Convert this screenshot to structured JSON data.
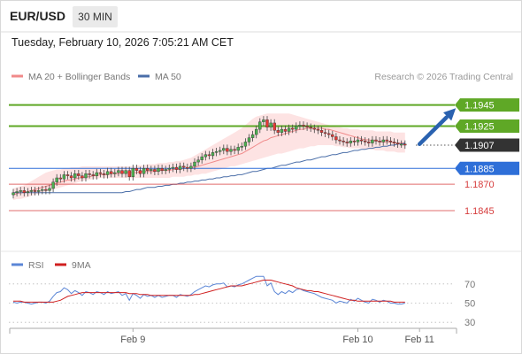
{
  "header": {
    "symbol": "EUR/USD",
    "timeframe": "30 MIN",
    "datetime": "Tuesday, February 10, 2026 7:05:21 AM CET"
  },
  "colors": {
    "resistance": "#5fa826",
    "current": "#333333",
    "pivot": "#2e6fd8",
    "support": "#d63c3c",
    "bollinger_fill": "#fde3e3",
    "ma20": "#f08a8a",
    "ma50": "#4a6ea8",
    "rsi": "#5b86d6",
    "rsi_ma": "#d02020",
    "arrow": "#2a62b0",
    "candle_up": "#4caf50",
    "candle_down": "#e53935"
  },
  "chart_data": [
    {
      "type": "candlestick",
      "legend": [
        {
          "name": "MA 20 + Bollinger Bands",
          "color": "#f08a8a"
        },
        {
          "name": "MA 50",
          "color": "#4a6ea8"
        }
      ],
      "legend_placement": "top-left",
      "source_label": "Research © 2026 Trading Central",
      "ylim": [
        1.1814,
        1.1969
      ],
      "x_tick_labels": [
        {
          "label": "Feb 9",
          "index": 33
        },
        {
          "label": "Feb 10",
          "index": 95
        },
        {
          "label": "Feb 11",
          "index": 112
        }
      ],
      "levels": [
        {
          "value": 1.1945,
          "label": "1.1945",
          "kind": "resistance",
          "style": "box"
        },
        {
          "value": 1.1925,
          "label": "1.1925",
          "kind": "resistance",
          "style": "box"
        },
        {
          "value": 1.1907,
          "label": "1.1907",
          "kind": "current",
          "style": "box"
        },
        {
          "value": 1.1885,
          "label": "1.1885",
          "kind": "pivot",
          "style": "box"
        },
        {
          "value": 1.187,
          "label": "1.1870",
          "kind": "support",
          "style": "text"
        },
        {
          "value": 1.1845,
          "label": "1.1845",
          "kind": "support",
          "style": "text"
        }
      ],
      "closes": [
        1.1862,
        1.1863,
        1.1864,
        1.1862,
        1.1863,
        1.1864,
        1.1863,
        1.1864,
        1.1865,
        1.1864,
        1.1866,
        1.1872,
        1.1876,
        1.1875,
        1.1879,
        1.1878,
        1.1876,
        1.188,
        1.1878,
        1.1876,
        1.188,
        1.1879,
        1.1878,
        1.1881,
        1.188,
        1.1879,
        1.1882,
        1.188,
        1.1881,
        1.1883,
        1.188,
        1.1883,
        1.1877,
        1.1885,
        1.1883,
        1.188,
        1.1885,
        1.1883,
        1.1884,
        1.1882,
        1.1885,
        1.1883,
        1.1884,
        1.1885,
        1.1886,
        1.1884,
        1.1887,
        1.1886,
        1.1885,
        1.1887,
        1.1891,
        1.1893,
        1.1896,
        1.1898,
        1.1897,
        1.19,
        1.1901,
        1.1902,
        1.1904,
        1.1901,
        1.1903,
        1.1902,
        1.1905,
        1.1906,
        1.191,
        1.1914,
        1.1917,
        1.1922,
        1.1929,
        1.1931,
        1.1924,
        1.1928,
        1.1921,
        1.1919,
        1.1922,
        1.192,
        1.1923,
        1.1922,
        1.1925,
        1.1926,
        1.1925,
        1.1924,
        1.1923,
        1.1922,
        1.1921,
        1.1919,
        1.1918,
        1.1917,
        1.1915,
        1.1912,
        1.1911,
        1.191,
        1.1909,
        1.1911,
        1.191,
        1.1912,
        1.1911,
        1.191,
        1.1909,
        1.1912,
        1.1911,
        1.191,
        1.1912,
        1.1911,
        1.191,
        1.1909,
        1.1908,
        1.1908,
        1.1907
      ],
      "ma20": [
        1.186,
        1.1861,
        1.1862,
        1.1862,
        1.1863,
        1.1864,
        1.1865,
        1.1866,
        1.1867,
        1.1868,
        1.1869,
        1.187,
        1.1871,
        1.1872,
        1.1873,
        1.1874,
        1.1874,
        1.1875,
        1.1876,
        1.1876,
        1.1877,
        1.1877,
        1.1878,
        1.1878,
        1.1879,
        1.1879,
        1.1879,
        1.188,
        1.188,
        1.188,
        1.1881,
        1.1881,
        1.1881,
        1.1881,
        1.1881,
        1.1882,
        1.1882,
        1.1882,
        1.1882,
        1.1882,
        1.1883,
        1.1883,
        1.1883,
        1.1883,
        1.1884,
        1.1884,
        1.1884,
        1.1885,
        1.1885,
        1.1886,
        1.1886,
        1.1887,
        1.1888,
        1.1889,
        1.189,
        1.1891,
        1.1892,
        1.1893,
        1.1894,
        1.1895,
        1.1896,
        1.1897,
        1.1898,
        1.1899,
        1.1901,
        1.1903,
        1.1905,
        1.1907,
        1.1909,
        1.1911,
        1.1912,
        1.1914,
        1.1915,
        1.1916,
        1.1917,
        1.1918,
        1.1919,
        1.192,
        1.1921,
        1.1922,
        1.1922,
        1.1923,
        1.1923,
        1.1923,
        1.1923,
        1.1923,
        1.1922,
        1.1922,
        1.1921,
        1.192,
        1.1919,
        1.1918,
        1.1917,
        1.1916,
        1.1915,
        1.1914,
        1.1913,
        1.1912,
        1.1912,
        1.1911,
        1.1911,
        1.191,
        1.191,
        1.191,
        1.191,
        1.1909,
        1.1909,
        1.1909,
        1.1909
      ],
      "bb_upper": [
        1.1866,
        1.1867,
        1.1868,
        1.1869,
        1.1871,
        1.1873,
        1.1875,
        1.1877,
        1.1879,
        1.1881,
        1.1882,
        1.1883,
        1.1884,
        1.1884,
        1.1885,
        1.1885,
        1.1886,
        1.1886,
        1.1886,
        1.1887,
        1.1887,
        1.1887,
        1.1887,
        1.1887,
        1.1887,
        1.1887,
        1.1887,
        1.1887,
        1.1887,
        1.1887,
        1.1887,
        1.1887,
        1.1887,
        1.1887,
        1.1888,
        1.1888,
        1.1888,
        1.1889,
        1.1889,
        1.1889,
        1.189,
        1.189,
        1.189,
        1.1891,
        1.1891,
        1.1892,
        1.1892,
        1.1893,
        1.1894,
        1.1895,
        1.1897,
        1.1899,
        1.1901,
        1.1903,
        1.1905,
        1.1907,
        1.1909,
        1.1911,
        1.1913,
        1.1915,
        1.1917,
        1.1919,
        1.1921,
        1.1923,
        1.1926,
        1.1929,
        1.1932,
        1.1934,
        1.1935,
        1.1936,
        1.1937,
        1.1937,
        1.1937,
        1.1937,
        1.1937,
        1.1937,
        1.1937,
        1.1936,
        1.1935,
        1.1934,
        1.1933,
        1.1932,
        1.1931,
        1.193,
        1.1929,
        1.1928,
        1.1927,
        1.1926,
        1.1925,
        1.1924,
        1.1924,
        1.1923,
        1.1923,
        1.1922,
        1.1922,
        1.1922,
        1.1921,
        1.1921,
        1.1921,
        1.1921,
        1.192,
        1.192,
        1.192,
        1.192,
        1.192,
        1.1919,
        1.1919,
        1.1919,
        1.1919
      ],
      "bb_lower": [
        1.1855,
        1.1856,
        1.1856,
        1.1857,
        1.1858,
        1.1859,
        1.186,
        1.1861,
        1.1862,
        1.1863,
        1.1864,
        1.1865,
        1.1866,
        1.1867,
        1.1868,
        1.1869,
        1.187,
        1.1871,
        1.1872,
        1.1873,
        1.1874,
        1.1874,
        1.1875,
        1.1875,
        1.1876,
        1.1876,
        1.1876,
        1.1876,
        1.1876,
        1.1876,
        1.1876,
        1.1876,
        1.1876,
        1.1876,
        1.1876,
        1.1876,
        1.1876,
        1.1876,
        1.1876,
        1.1876,
        1.1876,
        1.1876,
        1.1876,
        1.1876,
        1.1877,
        1.1877,
        1.1877,
        1.1877,
        1.1878,
        1.1878,
        1.1879,
        1.1879,
        1.188,
        1.188,
        1.1881,
        1.1882,
        1.1883,
        1.1884,
        1.1885,
        1.1886,
        1.1887,
        1.1887,
        1.1888,
        1.1889,
        1.189,
        1.1891,
        1.1892,
        1.1893,
        1.1894,
        1.1895,
        1.1896,
        1.1897,
        1.1898,
        1.1899,
        1.1899,
        1.19,
        1.1901,
        1.1902,
        1.1903,
        1.1904,
        1.1904,
        1.1905,
        1.1906,
        1.1906,
        1.1907,
        1.1907,
        1.1907,
        1.1907,
        1.1907,
        1.1906,
        1.1906,
        1.1905,
        1.1905,
        1.1904,
        1.1904,
        1.1904,
        1.1904,
        1.1903,
        1.1903,
        1.1903,
        1.1902,
        1.1902,
        1.1902,
        1.1901,
        1.1901,
        1.1901,
        1.19,
        1.19,
        1.19
      ],
      "ma50": [
        1.1862,
        1.1862,
        1.1862,
        1.1862,
        1.1862,
        1.1862,
        1.1862,
        1.1862,
        1.1862,
        1.1862,
        1.1862,
        1.1862,
        1.1862,
        1.1862,
        1.1862,
        1.1862,
        1.1862,
        1.1862,
        1.1862,
        1.1862,
        1.1862,
        1.1862,
        1.1862,
        1.1862,
        1.1862,
        1.1862,
        1.1862,
        1.1862,
        1.1862,
        1.1862,
        1.1862,
        1.1863,
        1.1863,
        1.1864,
        1.1865,
        1.1865,
        1.1866,
        1.1867,
        1.1867,
        1.1867,
        1.1868,
        1.1868,
        1.1869,
        1.1869,
        1.187,
        1.187,
        1.1871,
        1.1871,
        1.1872,
        1.1872,
        1.1873,
        1.1873,
        1.1874,
        1.1874,
        1.1875,
        1.1875,
        1.1876,
        1.1876,
        1.1877,
        1.1877,
        1.1878,
        1.1878,
        1.1879,
        1.1879,
        1.188,
        1.1881,
        1.1882,
        1.1882,
        1.1883,
        1.1884,
        1.1885,
        1.1885,
        1.1886,
        1.1887,
        1.1888,
        1.1888,
        1.1889,
        1.189,
        1.1891,
        1.1891,
        1.1892,
        1.1893,
        1.1893,
        1.1894,
        1.1895,
        1.1896,
        1.1896,
        1.1897,
        1.1898,
        1.1898,
        1.1899,
        1.19,
        1.19,
        1.1901,
        1.1902,
        1.1902,
        1.1903,
        1.1903,
        1.1904,
        1.1904,
        1.1905,
        1.1905,
        1.1906,
        1.1906,
        1.1907,
        1.1907,
        1.1908,
        1.1908,
        1.1909
      ],
      "projection": {
        "from_index": 112,
        "from_value": 1.1908,
        "to_index": 122,
        "to_value": 1.1942
      }
    },
    {
      "type": "line",
      "legend": [
        {
          "name": "RSI",
          "color": "#5b86d6"
        },
        {
          "name": "9MA",
          "color": "#d02020"
        }
      ],
      "ylim": [
        20,
        80
      ],
      "y_ticks": [
        70,
        50,
        30
      ],
      "series": [
        {
          "name": "RSI",
          "values": [
            51,
            50,
            51,
            51,
            50,
            49,
            50,
            51,
            51,
            50,
            52,
            57,
            61,
            62,
            66,
            64,
            60,
            63,
            61,
            58,
            62,
            61,
            59,
            62,
            61,
            59,
            62,
            60,
            61,
            62,
            58,
            60,
            53,
            60,
            58,
            55,
            59,
            57,
            58,
            56,
            58,
            56,
            57,
            58,
            58,
            56,
            59,
            58,
            57,
            59,
            62,
            64,
            66,
            68,
            67,
            69,
            70,
            70,
            71,
            67,
            68,
            67,
            69,
            70,
            72,
            74,
            76,
            78,
            78,
            78,
            68,
            71,
            62,
            59,
            62,
            60,
            63,
            61,
            64,
            65,
            63,
            62,
            61,
            60,
            58,
            56,
            55,
            54,
            53,
            50,
            52,
            51,
            50,
            54,
            52,
            55,
            53,
            51,
            50,
            54,
            53,
            51,
            53,
            52,
            50,
            50,
            49,
            49,
            50
          ]
        },
        {
          "name": "9MA",
          "values": [
            52,
            52,
            52,
            51,
            51,
            51,
            51,
            51,
            51,
            51,
            51,
            51,
            52,
            53,
            55,
            57,
            58,
            59,
            60,
            61,
            61,
            61,
            61,
            61,
            61,
            61,
            61,
            61,
            61,
            61,
            61,
            61,
            60,
            60,
            60,
            59,
            59,
            59,
            58,
            58,
            58,
            58,
            58,
            58,
            58,
            58,
            58,
            58,
            58,
            58,
            59,
            59,
            60,
            61,
            62,
            63,
            64,
            65,
            66,
            67,
            68,
            68,
            68,
            68,
            69,
            70,
            71,
            72,
            73,
            74,
            74,
            74,
            73,
            72,
            71,
            70,
            69,
            68,
            66,
            65,
            64,
            63,
            63,
            62,
            62,
            61,
            60,
            59,
            58,
            57,
            56,
            55,
            54,
            53,
            53,
            52,
            52,
            52,
            52,
            52,
            52,
            52,
            52,
            52,
            52,
            51,
            51,
            51,
            51
          ]
        }
      ]
    }
  ]
}
